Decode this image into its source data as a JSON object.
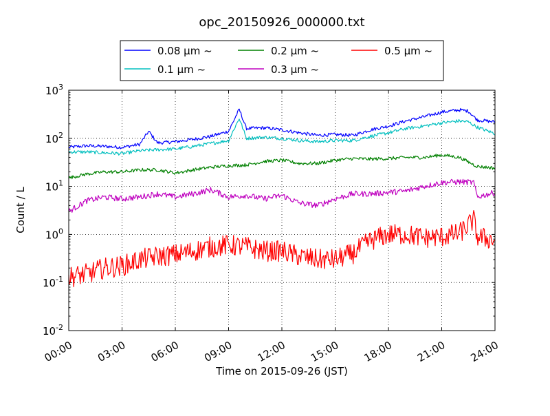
{
  "chart_data": {
    "type": "line",
    "title": "opc_20150926_000000.txt",
    "xlabel": "Time on 2015-09-26 (JST)",
    "ylabel": "Count / L",
    "y_scale": "log",
    "ylim": [
      0.01,
      1000
    ],
    "x_range_hours": [
      0,
      24
    ],
    "x_ticks": [
      "00:00",
      "03:00",
      "06:00",
      "09:00",
      "12:00",
      "15:00",
      "18:00",
      "21:00",
      "24:00"
    ],
    "y_ticks": [
      {
        "value": 0.01,
        "base": "10",
        "exp": "-2"
      },
      {
        "value": 0.1,
        "base": "10",
        "exp": "-1"
      },
      {
        "value": 1,
        "base": "10",
        "exp": "0"
      },
      {
        "value": 10,
        "base": "10",
        "exp": "1"
      },
      {
        "value": 100,
        "base": "10",
        "exp": "2"
      },
      {
        "value": 1000,
        "base": "10",
        "exp": "3"
      }
    ],
    "grid": true,
    "legend_position": "top",
    "series": [
      {
        "name": "0.08 μm ~",
        "color": "#0000ff",
        "x": [
          0,
          1,
          2,
          3,
          4,
          4.5,
          5,
          6,
          7,
          8,
          9,
          9.6,
          10,
          11,
          12,
          13,
          14,
          15,
          16,
          17,
          18,
          19,
          20,
          21,
          22,
          22.5,
          23,
          24
        ],
        "y": [
          65,
          70,
          68,
          65,
          75,
          140,
          80,
          85,
          95,
          110,
          140,
          400,
          160,
          165,
          150,
          130,
          115,
          120,
          115,
          150,
          180,
          230,
          280,
          350,
          390,
          370,
          240,
          220
        ]
      },
      {
        "name": "0.1 μm ~",
        "color": "#00bfbf",
        "x": [
          0,
          1,
          2,
          3,
          4,
          5,
          6,
          7,
          8,
          9,
          9.6,
          10,
          11,
          12,
          13,
          14,
          15,
          16,
          17,
          18,
          19,
          20,
          21,
          22,
          22.5,
          23,
          24
        ],
        "y": [
          52,
          52,
          50,
          48,
          55,
          58,
          60,
          68,
          78,
          90,
          260,
          100,
          105,
          100,
          90,
          85,
          90,
          90,
          110,
          130,
          160,
          180,
          210,
          230,
          220,
          170,
          125
        ]
      },
      {
        "name": "0.2 μm ~",
        "color": "#008000",
        "x": [
          0,
          1,
          2,
          3,
          4,
          5,
          6,
          7,
          8,
          9,
          10,
          11,
          12,
          13,
          14,
          15,
          16,
          17,
          18,
          19,
          20,
          21,
          22,
          23,
          24
        ],
        "y": [
          15,
          18,
          20,
          20,
          22,
          22,
          19,
          22,
          25,
          27,
          28,
          33,
          35,
          30,
          30,
          35,
          38,
          37,
          38,
          40,
          40,
          45,
          40,
          26,
          24
        ]
      },
      {
        "name": "0.3 μm ~",
        "color": "#bf00bf",
        "x": [
          0,
          1,
          2,
          3,
          4,
          5,
          6,
          7,
          8,
          9,
          10,
          11,
          12,
          13,
          14,
          15,
          16,
          17,
          18,
          19,
          20,
          21,
          22,
          22.8,
          23,
          24
        ],
        "y": [
          3,
          5,
          6,
          5.5,
          6,
          7,
          6,
          7,
          8.5,
          6,
          6.5,
          5.5,
          6.5,
          4.5,
          4,
          5.5,
          7,
          7,
          7.5,
          8,
          10,
          12,
          12.5,
          12,
          6,
          7.5
        ]
      },
      {
        "name": "0.5 μm ~",
        "color": "#ff0000",
        "x": [
          0,
          1,
          2,
          3,
          4,
          5,
          6,
          7,
          8,
          9,
          10,
          11,
          12,
          13,
          14,
          15,
          16,
          17,
          18,
          19,
          20,
          21,
          22,
          22.8,
          23,
          24
        ],
        "y": [
          0.13,
          0.15,
          0.2,
          0.22,
          0.3,
          0.35,
          0.38,
          0.45,
          0.55,
          0.6,
          0.55,
          0.45,
          0.45,
          0.35,
          0.3,
          0.3,
          0.4,
          0.75,
          1.0,
          1.0,
          0.85,
          0.9,
          1.05,
          2.0,
          0.9,
          0.75
        ]
      }
    ]
  }
}
